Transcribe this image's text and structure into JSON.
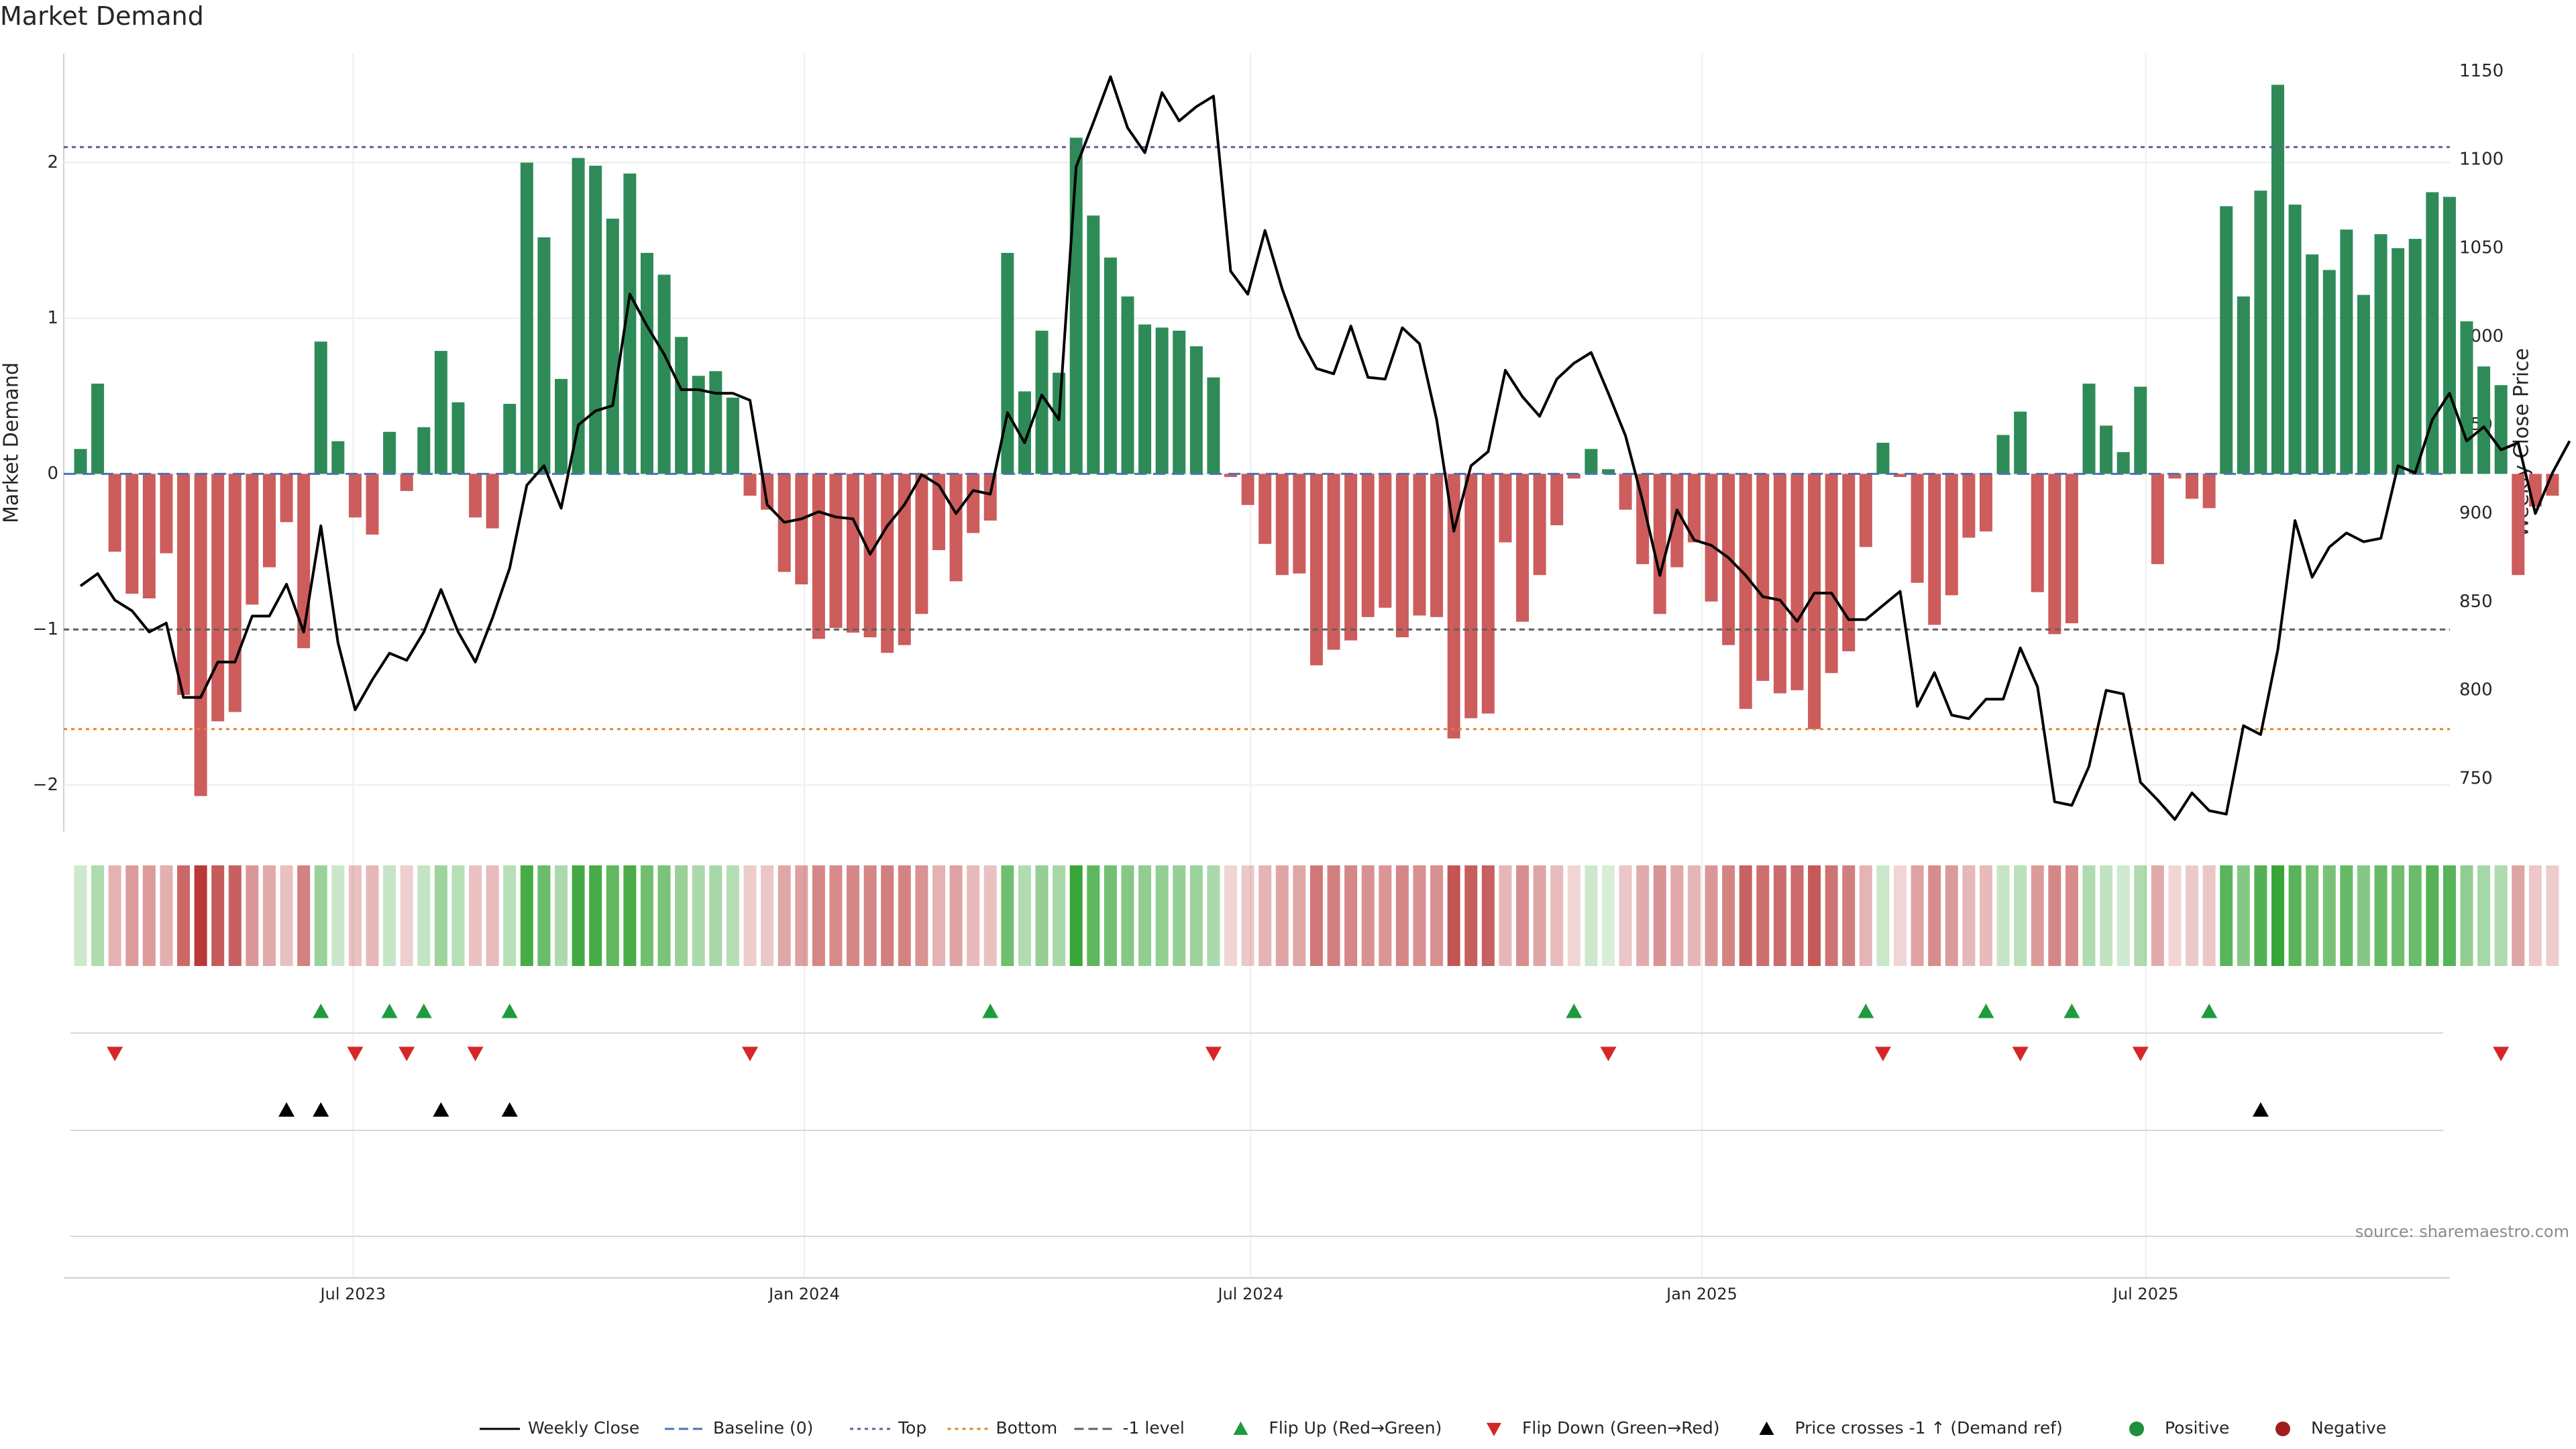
{
  "chart_data": {
    "type": "bar",
    "title": "Market Demand",
    "ylabel": "Market Demand",
    "y2label": "Weekly Close Price",
    "ylim": [
      -2.3,
      2.7
    ],
    "y2lim": [
      720,
      1160
    ],
    "yticks": [
      -2,
      -1,
      0,
      1,
      2
    ],
    "y2ticks": [
      750,
      800,
      850,
      900,
      950,
      1000,
      1050,
      1100,
      1150
    ],
    "xlim": [
      "2023-03-05",
      "2025-11-02"
    ],
    "xticks": [
      {
        "date": "2023-07-01",
        "label": "Jul 2023"
      },
      {
        "date": "2024-01-01",
        "label": "Jan 2024"
      },
      {
        "date": "2024-07-01",
        "label": "Jul 2024"
      },
      {
        "date": "2025-01-01",
        "label": "Jan 2025"
      },
      {
        "date": "2025-07-01",
        "label": "Jul 2025"
      }
    ],
    "start_week": "2023-03-05",
    "levels": {
      "top": 2.1,
      "bottom": -1.64,
      "minus_one": -1.0,
      "baseline": 0
    },
    "demand": [
      0.16,
      0.58,
      -0.5,
      -0.77,
      -0.8,
      -0.51,
      -1.42,
      -2.07,
      -1.59,
      -1.53,
      -0.84,
      -0.6,
      -0.31,
      -1.12,
      0.85,
      0.21,
      -0.28,
      -0.39,
      0.27,
      -0.11,
      0.3,
      0.79,
      0.46,
      -0.28,
      -0.35,
      0.45,
      2.0,
      1.52,
      0.61,
      2.03,
      1.98,
      1.64,
      1.93,
      1.42,
      1.28,
      0.88,
      0.63,
      0.66,
      0.49,
      -0.14,
      -0.23,
      -0.63,
      -0.71,
      -1.06,
      -0.99,
      -1.02,
      -1.05,
      -1.15,
      -1.1,
      -0.9,
      -0.49,
      -0.69,
      -0.38,
      -0.3,
      1.42,
      0.53,
      0.92,
      0.65,
      2.16,
      1.66,
      1.39,
      1.14,
      0.96,
      0.94,
      0.92,
      0.82,
      0.62,
      -0.02,
      -0.2,
      -0.45,
      -0.65,
      -0.64,
      -1.23,
      -1.13,
      -1.07,
      -0.92,
      -0.86,
      -1.05,
      -0.91,
      -0.92,
      -1.7,
      -1.57,
      -1.54,
      -0.44,
      -0.95,
      -0.65,
      -0.33,
      -0.03,
      0.16,
      0.03,
      -0.23,
      -0.58,
      -0.9,
      -0.6,
      -0.44,
      -0.82,
      -1.1,
      -1.51,
      -1.33,
      -1.41,
      -1.39,
      -1.64,
      -1.28,
      -1.14,
      -0.47,
      0.2,
      -0.02,
      -0.7,
      -0.97,
      -0.78,
      -0.41,
      -0.37,
      0.25,
      0.4,
      -0.76,
      -1.03,
      -0.96,
      0.58,
      0.31,
      0.14,
      0.56,
      -0.58,
      -0.03,
      -0.16,
      -0.22,
      1.72,
      1.14,
      1.82,
      2.5,
      1.73,
      1.41,
      1.31,
      1.57,
      1.15,
      1.54,
      1.45,
      1.51,
      1.81,
      1.78,
      0.98,
      0.69,
      0.57,
      -0.65,
      -0.21,
      -0.14
    ],
    "price": [
      859,
      866,
      851,
      845,
      833,
      838,
      796,
      796,
      816,
      816,
      842,
      842,
      860,
      833,
      893,
      827,
      789,
      806,
      821,
      817,
      833,
      857,
      833,
      816,
      841,
      869,
      916,
      927,
      903,
      950,
      958,
      961,
      1024,
      1006,
      990,
      970,
      970,
      968,
      968,
      964,
      905,
      895,
      897,
      901,
      898,
      897,
      877,
      893,
      905,
      922,
      916,
      900,
      913,
      911,
      957,
      940,
      967,
      953,
      1096,
      1121,
      1147,
      1118,
      1104,
      1138,
      1122,
      1130,
      1136,
      1037,
      1024,
      1060,
      1027,
      1000,
      982,
      979,
      1006,
      977,
      976,
      1005,
      996,
      953,
      890,
      927,
      935,
      981,
      966,
      955,
      976,
      985,
      991,
      968,
      944,
      907,
      865,
      902,
      885,
      882,
      875,
      865,
      853,
      851,
      839,
      855,
      855,
      840,
      840,
      848,
      856,
      791,
      810,
      786,
      784,
      795,
      795,
      824,
      802,
      737,
      735,
      757,
      800,
      798,
      748,
      738,
      727,
      742,
      732,
      730,
      780,
      775,
      823,
      896,
      864,
      881,
      889,
      884,
      886,
      927,
      923,
      953,
      968,
      941,
      949,
      936,
      940,
      900,
      923,
      941
    ],
    "flip_up": [
      14,
      18,
      20,
      25,
      53,
      87,
      104,
      111,
      116,
      124
    ],
    "flip_down": [
      2,
      16,
      19,
      23,
      39,
      66,
      89,
      105,
      113,
      120,
      141
    ],
    "price_cross": [
      12,
      14,
      21,
      25,
      127
    ],
    "legend": [
      {
        "label": "Weekly Close",
        "style": "solid-line",
        "color": "#000000"
      },
      {
        "label": "Baseline (0)",
        "style": "dashed-line",
        "color": "#4c72b0"
      },
      {
        "label": "Top",
        "style": "dotted-line",
        "color": "#6b5b8f"
      },
      {
        "label": "Bottom",
        "style": "dotted-line",
        "color": "#e0822a"
      },
      {
        "label": "-1 level",
        "style": "dashed-line",
        "color": "#606060"
      },
      {
        "label": "Flip Up (Red→Green)",
        "style": "triangle-up",
        "color": "#1e9b3c"
      },
      {
        "label": "Flip Down (Green→Red)",
        "style": "triangle-down",
        "color": "#d62728"
      },
      {
        "label": "Price crosses -1 ↑ (Demand ref)",
        "style": "triangle-up",
        "color": "#000000"
      },
      {
        "label": "Positive",
        "style": "circle",
        "color": "#1e8f3a"
      },
      {
        "label": "Negative",
        "style": "circle",
        "color": "#a11d1d"
      }
    ],
    "colors": {
      "positive": "#2e8b57",
      "negative": "#cd5c5c",
      "heat_pos": "#2ca02c",
      "heat_neg": "#b22222"
    },
    "source": "source: sharemaestro.com",
    "grid": true
  }
}
